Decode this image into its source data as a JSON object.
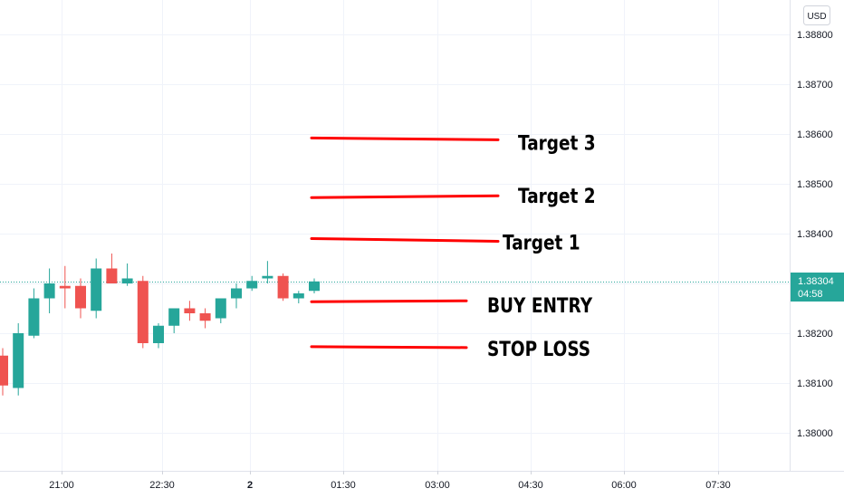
{
  "chart_data": {
    "type": "candlestick",
    "currency": "USD",
    "y_ticks": [
      "1.38800",
      "1.38700",
      "1.38600",
      "1.38500",
      "1.38400",
      "1.38200",
      "1.38100",
      "1.38000"
    ],
    "x_ticks": [
      "21:00",
      "22:30",
      "2",
      "01:30",
      "03:00",
      "04:30",
      "06:00",
      "07:30"
    ],
    "ylim": [
      1.3793,
      1.3888
    ],
    "grid": true,
    "colors": {
      "up": "#26a69a",
      "down": "#ef5350",
      "annotation_line": "#ff0000",
      "current_price": "#26a69a"
    },
    "current_price": {
      "label": "1.38304",
      "countdown": "04:58",
      "value": 1.38304
    },
    "candles": [
      {
        "open": 1.38155,
        "high": 1.3817,
        "low": 1.38075,
        "close": 1.38095
      },
      {
        "open": 1.3809,
        "high": 1.3822,
        "low": 1.38075,
        "close": 1.382
      },
      {
        "open": 1.38195,
        "high": 1.3829,
        "low": 1.3819,
        "close": 1.3827
      },
      {
        "open": 1.3827,
        "high": 1.3833,
        "low": 1.3824,
        "close": 1.383
      },
      {
        "open": 1.38295,
        "high": 1.38335,
        "low": 1.3825,
        "close": 1.3829
      },
      {
        "open": 1.38295,
        "high": 1.3831,
        "low": 1.3823,
        "close": 1.3825
      },
      {
        "open": 1.38245,
        "high": 1.3835,
        "low": 1.3823,
        "close": 1.3833
      },
      {
        "open": 1.3833,
        "high": 1.3836,
        "low": 1.383,
        "close": 1.383
      },
      {
        "open": 1.383,
        "high": 1.3834,
        "low": 1.38295,
        "close": 1.3831
      },
      {
        "open": 1.38305,
        "high": 1.38315,
        "low": 1.3817,
        "close": 1.3818
      },
      {
        "open": 1.3818,
        "high": 1.3822,
        "low": 1.3817,
        "close": 1.38215
      },
      {
        "open": 1.38215,
        "high": 1.3825,
        "low": 1.382,
        "close": 1.3825
      },
      {
        "open": 1.3825,
        "high": 1.38265,
        "low": 1.38225,
        "close": 1.3824
      },
      {
        "open": 1.3824,
        "high": 1.3825,
        "low": 1.3821,
        "close": 1.38225
      },
      {
        "open": 1.3823,
        "high": 1.3827,
        "low": 1.3822,
        "close": 1.3827
      },
      {
        "open": 1.3827,
        "high": 1.383,
        "low": 1.3825,
        "close": 1.3829
      },
      {
        "open": 1.3829,
        "high": 1.38315,
        "low": 1.38285,
        "close": 1.38305
      },
      {
        "open": 1.3831,
        "high": 1.38345,
        "low": 1.383,
        "close": 1.38315
      },
      {
        "open": 1.38315,
        "high": 1.3832,
        "low": 1.38265,
        "close": 1.3827
      },
      {
        "open": 1.3827,
        "high": 1.38285,
        "low": 1.3826,
        "close": 1.3828
      },
      {
        "open": 1.38285,
        "high": 1.3831,
        "low": 1.3828,
        "close": 1.38304
      }
    ],
    "annotations": [
      {
        "label": "Target 3",
        "value": 1.38592
      },
      {
        "label": "Target 2",
        "value": 1.38476
      },
      {
        "label": "Target 1",
        "value": 1.3839
      },
      {
        "label": "BUY ENTRY",
        "value": 1.38265
      },
      {
        "label": "STOP LOSS",
        "value": 1.38173
      }
    ]
  }
}
